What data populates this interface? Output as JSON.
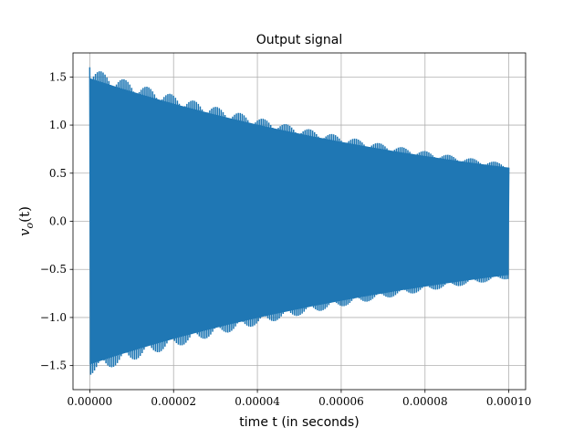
{
  "chart_data": {
    "type": "line",
    "title": "Output signal",
    "xlabel": "time t (in seconds)",
    "ylabel": "v_o(t)",
    "ylabel_main": "v",
    "ylabel_sub": "o",
    "ylabel_rest": "(t)",
    "xlim": [
      -4e-06,
      0.000104
    ],
    "ylim": [
      -1.75,
      1.75
    ],
    "x_ticks": [
      0,
      2e-05,
      4e-05,
      6e-05,
      8e-05,
      0.0001
    ],
    "x_tick_labels": [
      "0.00000",
      "0.00002",
      "0.00004",
      "0.00006",
      "0.00008",
      "0.00010"
    ],
    "y_ticks": [
      -1.5,
      -1.0,
      -0.5,
      0.0,
      0.5,
      1.0,
      1.5
    ],
    "y_tick_labels": [
      "−1.5",
      "−1.0",
      "−0.5",
      "0.0",
      "0.5",
      "1.0",
      "1.5"
    ],
    "grid": true,
    "series": [
      {
        "name": "v_o(t)",
        "color": "#1f77b4",
        "envelope": {
          "t_start": 0,
          "t_end": 0.0001,
          "amplitude_start": 1.6,
          "amplitude_end": 0.6
        },
        "oscillation_cycles": 220
      }
    ]
  }
}
